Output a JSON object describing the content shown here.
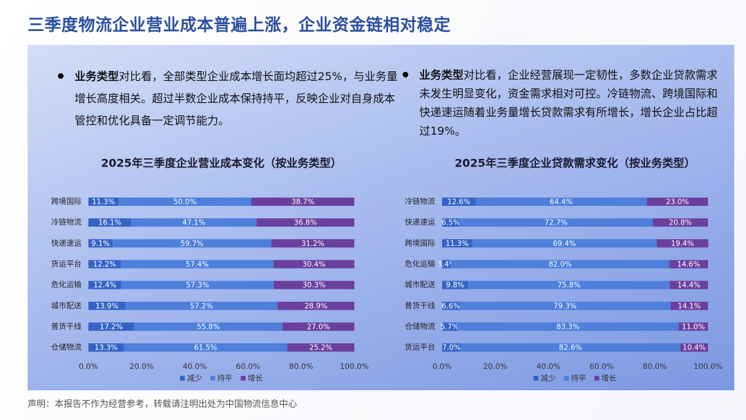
{
  "header": {
    "title": "三季度物流企业营业成本普遍上涨，企业资金链相对稳定"
  },
  "bullets": [
    {
      "bold": "业务类型",
      "text": "对比看，全部类型企业成本增长面均超过25%，与业务量增长高度相关。超过半数企业成本保持持平，反映企业对自身成本管控和优化具备一定调节能力。"
    },
    {
      "bold": "业务类型",
      "text": "对比看，企业经营展现一定韧性，多数企业贷款需求未发生明显变化，资金需求相对可控。冷链物流、跨境国际和快递速运随着业务量增长贷款需求有所增长，增长企业占比超过19%。"
    }
  ],
  "footer": "声明：本报告不作为经营参考，转载请注明出处为中国物流信息中心",
  "chart_data": [
    {
      "type": "bar",
      "orientation": "horizontal",
      "stacked": true,
      "title": "2025年三季度企业营业成本变化（按业务类型）",
      "categories": [
        "跨境国际",
        "冷链物流",
        "快递速运",
        "货运平台",
        "危化运输",
        "城市配送",
        "普货干线",
        "仓储物流"
      ],
      "series": [
        {
          "name": "减少",
          "color": "#3463c6",
          "values": [
            11.3,
            16.1,
            9.1,
            12.2,
            12.4,
            13.9,
            17.2,
            13.3
          ],
          "value_labels": [
            "11.3%",
            "16.1%",
            "9.1%",
            "12.2%",
            "12.4%",
            "13.9%",
            "17.2%",
            "13.3%"
          ]
        },
        {
          "name": "持平",
          "color": "#4d7fdb",
          "values": [
            50.0,
            47.1,
            59.7,
            57.4,
            57.3,
            57.2,
            55.8,
            61.5
          ],
          "value_labels": [
            "50.0%",
            "47.1%",
            "59.7%",
            "57.4%",
            "57.3%",
            "57.2%",
            "55.8%",
            "61.5%"
          ]
        },
        {
          "name": "增长",
          "color": "#6b3f9e",
          "values": [
            38.7,
            36.8,
            31.2,
            30.4,
            30.3,
            28.9,
            27.0,
            25.2
          ],
          "value_labels": [
            "38.7%",
            "36.8%",
            "31.2%",
            "30.4%",
            "30.3%",
            "28.9%",
            "27.0%",
            "25.2%"
          ]
        }
      ],
      "xlim": [
        0,
        100
      ],
      "xticks": [
        {
          "value": 0,
          "label": "0.0%"
        },
        {
          "value": 20,
          "label": "20.0%"
        },
        {
          "value": 40,
          "label": "40.0%"
        },
        {
          "value": 60,
          "label": "60.0%"
        },
        {
          "value": 80,
          "label": "80.0%"
        },
        {
          "value": 100,
          "label": "100.0%"
        }
      ],
      "legend": "bottom"
    },
    {
      "type": "bar",
      "orientation": "horizontal",
      "stacked": true,
      "title": "2025年三季度企业贷款需求变化（按业务类型）",
      "categories": [
        "冷链物流",
        "快递速运",
        "跨境国际",
        "危化运输",
        "城市配送",
        "普货干线",
        "仓储物流",
        "货运平台"
      ],
      "series": [
        {
          "name": "减少",
          "color": "#3463c6",
          "values": [
            12.6,
            6.5,
            11.3,
            3.4,
            9.8,
            6.6,
            5.7,
            7.0
          ],
          "value_labels": [
            "12.6%",
            "6.5%",
            "11.3%",
            "3.4%",
            "9.8%",
            "6.6%",
            "5.7%",
            "7.0%"
          ]
        },
        {
          "name": "持平",
          "color": "#4d7fdb",
          "values": [
            64.4,
            72.7,
            69.4,
            82.0,
            75.8,
            79.3,
            83.3,
            82.6
          ],
          "value_labels": [
            "64.4%",
            "72.7%",
            "69.4%",
            "82.0%",
            "75.8%",
            "79.3%",
            "83.3%",
            "82.6%"
          ]
        },
        {
          "name": "增长",
          "color": "#6b3f9e",
          "values": [
            23.0,
            20.8,
            19.4,
            14.6,
            14.4,
            14.1,
            11.0,
            10.4
          ],
          "value_labels": [
            "23.0%",
            "20.8%",
            "19.4%",
            "14.6%",
            "14.4%",
            "14.1%",
            "11.0%",
            "10.4%"
          ]
        }
      ],
      "xlim": [
        0,
        100
      ],
      "xticks": [
        {
          "value": 0,
          "label": "0.0%"
        },
        {
          "value": 20,
          "label": "20.0%"
        },
        {
          "value": 40,
          "label": "40.0%"
        },
        {
          "value": 60,
          "label": "60.0%"
        },
        {
          "value": 80,
          "label": "80.0%"
        },
        {
          "value": 100,
          "label": "100.0%"
        }
      ],
      "legend": "bottom"
    }
  ]
}
